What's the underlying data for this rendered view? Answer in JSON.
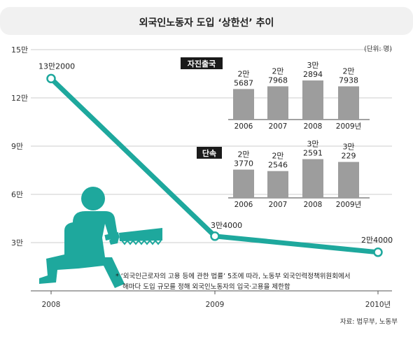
{
  "title": "외국인노동자 도입 ‘상한선’ 추이",
  "unit": "(단위: 명)",
  "source": "자료: 법무부, 노동부",
  "footnote": [
    "* ‘외국인근로자의 고용 등에 관한 법률’ 5조에 따라, 노동부 외국인력정책위원회에서",
    "해마다 도입 규모를 정해 외국인노동자의 입국·고용을 제한함"
  ],
  "colors": {
    "line": "#1ea89d",
    "bars": "#9d9d9d",
    "tag_bg": "#1a1a1a",
    "header_bg": "#f1f1f1"
  },
  "chart_data": [
    {
      "type": "line",
      "title": "외국인노동자 도입 ‘상한선’ 추이",
      "x": [
        "2008",
        "2009",
        "2010년"
      ],
      "y_ticks": [
        "3만",
        "6만",
        "9만",
        "12만",
        "15만"
      ],
      "ylim": [
        0,
        150000
      ],
      "series": [
        {
          "values": [
            132000,
            34000,
            24000
          ],
          "labels": [
            "13만2000",
            "3만4000",
            "2만4000"
          ]
        }
      ]
    },
    {
      "type": "bar",
      "title": "자진출국",
      "categories": [
        "2006",
        "2007",
        "2008",
        "2009년"
      ],
      "values": [
        25687,
        27968,
        32894,
        27938
      ],
      "labels": [
        [
          "2만",
          "5687"
        ],
        [
          "2만",
          "7968"
        ],
        [
          "3만",
          "2894"
        ],
        [
          "2만",
          "7938"
        ]
      ]
    },
    {
      "type": "bar",
      "title": "단속",
      "categories": [
        "2006",
        "2007",
        "2008",
        "2009년"
      ],
      "values": [
        23770,
        22546,
        32591,
        30229
      ],
      "labels": [
        [
          "2만",
          "3770"
        ],
        [
          "2만",
          "2546"
        ],
        [
          "3만",
          "2591"
        ],
        [
          "3만",
          "229"
        ]
      ]
    }
  ]
}
